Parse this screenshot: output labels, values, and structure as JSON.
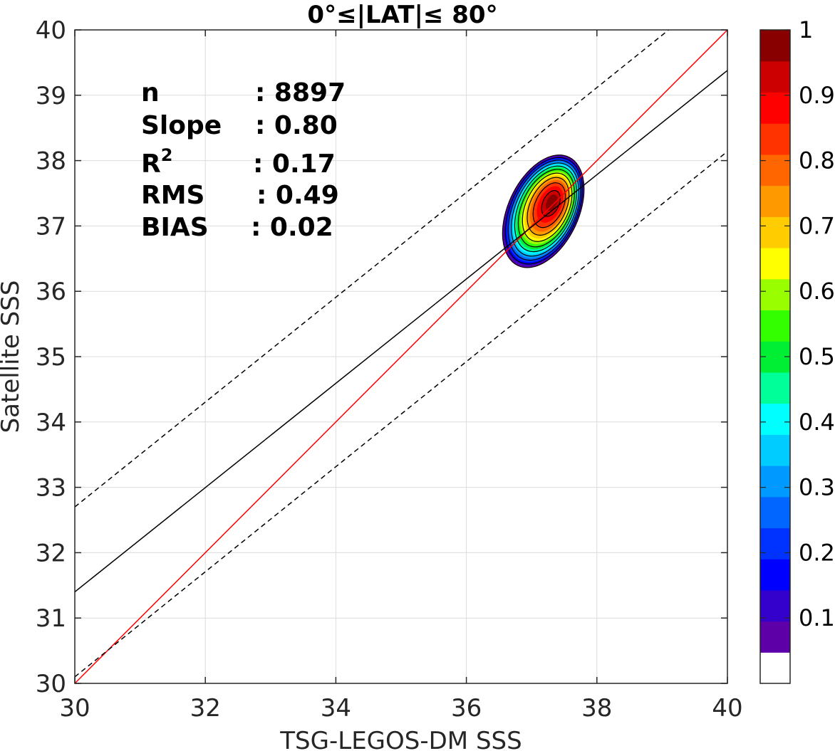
{
  "chart_data": {
    "type": "contour",
    "title": "0°≤|LAT|≤ 80°",
    "xlabel": "TSG-LEGOS-DM SSS",
    "ylabel": "Satellite SSS",
    "xlim": [
      30,
      40
    ],
    "ylim": [
      30,
      40
    ],
    "xticks": [
      "30",
      "32",
      "34",
      "36",
      "38",
      "40"
    ],
    "yticks": [
      "30",
      "31",
      "32",
      "33",
      "34",
      "35",
      "36",
      "37",
      "38",
      "39",
      "40"
    ],
    "grid": true,
    "stats": [
      {
        "name": "n",
        "value": ": 8897"
      },
      {
        "name": "Slope",
        "value": ": 0.80"
      },
      {
        "name": "R",
        "sup": "2",
        "value": ": 0.17"
      },
      {
        "name": "RMS",
        "value": ": 0.49"
      },
      {
        "name": "BIAS",
        "value": ": 0.02"
      }
    ],
    "lines": [
      {
        "role": "one-to-one",
        "color": "#ff0000",
        "style": "solid",
        "x": [
          30,
          40
        ],
        "y": [
          30,
          40
        ]
      },
      {
        "role": "regression",
        "color": "#000000",
        "style": "solid",
        "x": [
          30,
          40
        ],
        "y": [
          31.4,
          39.38
        ]
      },
      {
        "role": "upper-bound",
        "color": "#000000",
        "style": "dashed",
        "x": [
          30,
          39.1
        ],
        "y": [
          32.7,
          40
        ]
      },
      {
        "role": "lower-bound",
        "color": "#000000",
        "style": "dashed",
        "x": [
          30,
          40
        ],
        "y": [
          30.1,
          38.14
        ]
      }
    ],
    "density_peak": {
      "x": 37.33,
      "y": 37.38
    },
    "density_extent": {
      "x": [
        36.5,
        37.85
      ],
      "y": [
        36.26,
        38.18
      ]
    },
    "colorbar": {
      "ticks": [
        "0.1",
        "0.2",
        "0.3",
        "0.4",
        "0.5",
        "0.6",
        "0.7",
        "0.8",
        "0.9",
        "1"
      ],
      "levels": [
        0,
        0.05,
        0.1,
        0.15,
        0.2,
        0.25,
        0.3,
        0.35,
        0.4,
        0.45,
        0.5,
        0.55,
        0.6,
        0.65,
        0.7,
        0.75,
        0.8,
        0.85,
        0.9,
        0.95,
        1
      ],
      "colors": [
        "#ffffff",
        "#5e00a8",
        "#3300cc",
        "#0000ff",
        "#0033ff",
        "#0066ff",
        "#0099ff",
        "#00ccff",
        "#00ffff",
        "#00ff99",
        "#00ee33",
        "#33ff00",
        "#99ff00",
        "#ffff00",
        "#ffcc00",
        "#ff9900",
        "#ff6600",
        "#ff3300",
        "#ff0000",
        "#cc0000",
        "#880000"
      ]
    }
  }
}
